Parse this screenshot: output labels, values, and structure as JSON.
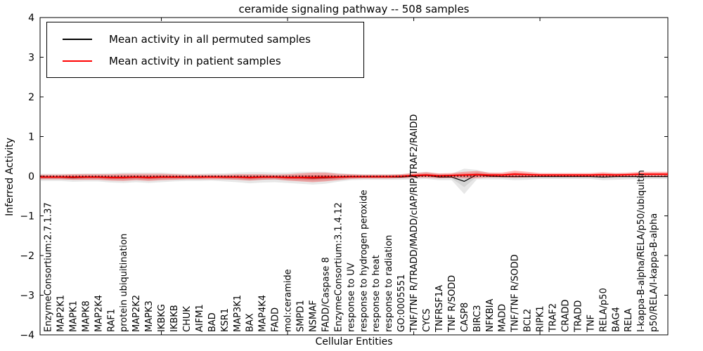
{
  "title": "ceramide signaling pathway -- 508 samples",
  "legend": {
    "items": [
      {
        "label": "Mean activity in all permuted samples",
        "color": "#000000"
      },
      {
        "label": "Mean activity in patient samples",
        "color": "#ff0000"
      }
    ]
  },
  "chart_data": {
    "type": "line",
    "title": "ceramide signaling pathway -- 508 samples",
    "xlabel": "Cellular Entities",
    "ylabel": "Inferred Activity",
    "ylim": [
      -4,
      4
    ],
    "ytick_labels": [
      "4",
      "3",
      "2",
      "1",
      "0",
      "−1",
      "−2",
      "−3",
      "−4"
    ],
    "ytick_values": [
      4,
      3,
      2,
      1,
      0,
      -1,
      -2,
      -3,
      -4
    ],
    "xtick_major_positions": [
      10,
      20,
      30,
      40
    ],
    "grid": false,
    "legend_position": "upper left",
    "zero_line": {
      "value": 0,
      "style": "dotted",
      "color": "#000000"
    },
    "categories": [
      "EnzymeConsortium:2.7.1.37",
      "MAP2K1",
      "MAPK1",
      "MAPK8",
      "MAP2K4",
      "RAF1",
      "protein ubiquitination",
      "MAP2K2",
      "MAPK3",
      "IKBKG",
      "IKBKB",
      "CHUK",
      "AIFM1",
      "BAD",
      "KSR1",
      "MAP3K1",
      "BAX",
      "MAP4K4",
      "FADD",
      "mol:ceramide",
      "SMPD1",
      "NSMAF",
      "FADD/Caspase 8",
      "EnzymeConsortium:3.1.4.12",
      "response to UV",
      "response to hydrogen peroxide",
      "response to heat",
      "response to radiation",
      "GO:0005551",
      "TNF/TNF R/TRADD/MADD/cIAP/RIP/TRAF2/RAIDD",
      "CYCS",
      "TNFRSF1A",
      "TNF R/SODD",
      "CASP8",
      "BIRC3",
      "NFKBIA",
      "MADD",
      "TNF/TNF R/SODD",
      "BCL2",
      "RIPK1",
      "TRAF2",
      "CRADD",
      "TRADD",
      "TNF",
      "RELA/p50",
      "BAG4",
      "RELA",
      "I-kappa-B-alpha/RELA/p50/ubiquitin",
      "p50/RELA/I-kappa-B-alpha"
    ],
    "series": [
      {
        "name": "Mean activity in all permuted samples",
        "color": "#000000",
        "line_width": 1.2,
        "band_color": "#909090",
        "band_opacity": 0.22,
        "values": [
          -0.03,
          -0.03,
          -0.04,
          -0.03,
          -0.03,
          -0.04,
          -0.04,
          -0.03,
          -0.04,
          -0.03,
          -0.03,
          -0.03,
          -0.03,
          -0.02,
          -0.03,
          -0.03,
          -0.04,
          -0.03,
          -0.03,
          -0.04,
          -0.04,
          -0.05,
          -0.04,
          -0.03,
          -0.02,
          -0.02,
          -0.02,
          -0.02,
          -0.02,
          0.0,
          0.02,
          -0.02,
          -0.02,
          -0.13,
          0.04,
          0.0,
          -0.01,
          -0.01,
          -0.01,
          -0.01,
          -0.01,
          -0.01,
          -0.01,
          -0.01,
          -0.02,
          -0.01,
          -0.01,
          -0.01,
          -0.01
        ],
        "band_halfwidth": [
          0.09,
          0.09,
          0.1,
          0.1,
          0.1,
          0.12,
          0.13,
          0.12,
          0.13,
          0.12,
          0.1,
          0.09,
          0.09,
          0.09,
          0.1,
          0.12,
          0.14,
          0.13,
          0.12,
          0.13,
          0.15,
          0.16,
          0.15,
          0.11,
          0.08,
          0.07,
          0.07,
          0.07,
          0.07,
          0.08,
          0.09,
          0.08,
          0.08,
          0.32,
          0.12,
          0.08,
          0.07,
          0.09,
          0.08,
          0.06,
          0.06,
          0.06,
          0.06,
          0.06,
          0.08,
          0.08,
          0.07,
          0.06,
          0.06
        ]
      },
      {
        "name": "Mean activity in patient samples",
        "color": "#ff0000",
        "line_width": 1.8,
        "band_color": "#ff0000",
        "band_opacity": 0.28,
        "values": [
          -0.02,
          -0.02,
          -0.02,
          -0.02,
          -0.02,
          -0.03,
          -0.03,
          -0.02,
          -0.03,
          -0.02,
          -0.02,
          -0.02,
          -0.02,
          -0.02,
          -0.02,
          -0.02,
          -0.03,
          -0.02,
          -0.02,
          -0.03,
          -0.03,
          -0.03,
          -0.02,
          -0.02,
          -0.01,
          -0.01,
          -0.01,
          -0.01,
          0.0,
          0.02,
          0.03,
          0.01,
          0.02,
          0.03,
          0.04,
          0.03,
          0.03,
          0.05,
          0.04,
          0.03,
          0.03,
          0.03,
          0.03,
          0.03,
          0.04,
          0.03,
          0.04,
          0.05,
          0.05
        ],
        "band_halfwidth": [
          0.06,
          0.06,
          0.07,
          0.07,
          0.07,
          0.08,
          0.09,
          0.08,
          0.09,
          0.08,
          0.07,
          0.06,
          0.06,
          0.06,
          0.06,
          0.07,
          0.08,
          0.07,
          0.06,
          0.08,
          0.1,
          0.12,
          0.11,
          0.08,
          0.06,
          0.05,
          0.05,
          0.05,
          0.05,
          0.06,
          0.07,
          0.06,
          0.06,
          0.08,
          0.09,
          0.06,
          0.06,
          0.09,
          0.07,
          0.05,
          0.05,
          0.05,
          0.05,
          0.05,
          0.06,
          0.05,
          0.05,
          0.06,
          0.06
        ]
      }
    ]
  }
}
